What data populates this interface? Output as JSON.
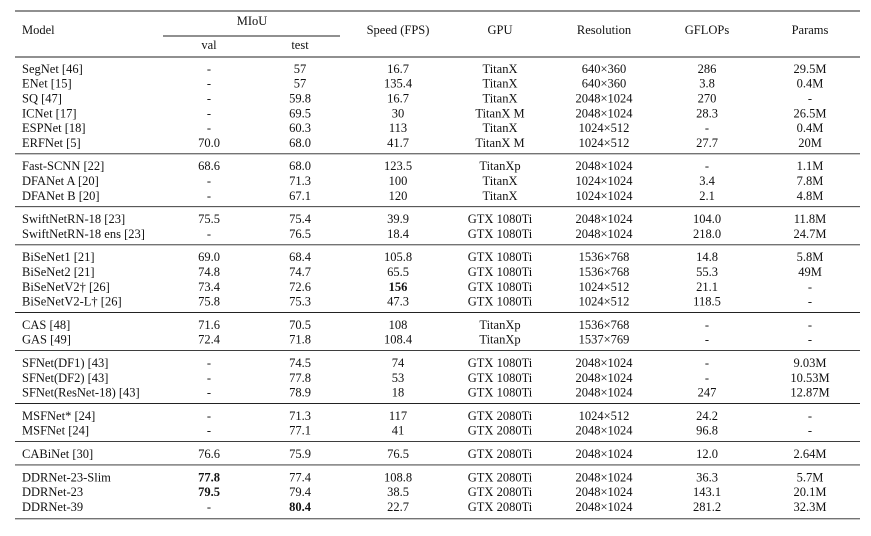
{
  "header": {
    "model": "Model",
    "miou": "MIoU",
    "val": "val",
    "test": "test",
    "speed": "Speed (FPS)",
    "gpu": "GPU",
    "resolution": "Resolution",
    "gflops": "GFLOPs",
    "params": "Params"
  },
  "groups": [
    [
      [
        "SegNet [46]",
        "-",
        "57",
        "16.7",
        "TitanX",
        "640×360",
        "286",
        "29.5M"
      ],
      [
        "ENet [15]",
        "-",
        "57",
        "135.4",
        "TitanX",
        "640×360",
        "3.8",
        "0.4M"
      ],
      [
        "SQ [47]",
        "-",
        "59.8",
        "16.7",
        "TitanX",
        "2048×1024",
        "270",
        "-"
      ],
      [
        "ICNet [17]",
        "-",
        "69.5",
        "30",
        "TitanX M",
        "2048×1024",
        "28.3",
        "26.5M"
      ],
      [
        "ESPNet [18]",
        "-",
        "60.3",
        "113",
        "TitanX",
        "1024×512",
        "-",
        "0.4M"
      ],
      [
        "ERFNet [5]",
        "70.0",
        "68.0",
        "41.7",
        "TitanX M",
        "1024×512",
        "27.7",
        "20M"
      ]
    ],
    [
      [
        "Fast-SCNN [22]",
        "68.6",
        "68.0",
        "123.5",
        "TitanXp",
        "2048×1024",
        "-",
        "1.1M"
      ],
      [
        "DFANet A [20]",
        "-",
        "71.3",
        "100",
        "TitanX",
        "1024×1024",
        "3.4",
        "7.8M"
      ],
      [
        "DFANet B [20]",
        "-",
        "67.1",
        "120",
        "TitanX",
        "1024×1024",
        "2.1",
        "4.8M"
      ]
    ],
    [
      [
        "SwiftNetRN-18 [23]",
        "75.5",
        "75.4",
        "39.9",
        "GTX 1080Ti",
        "2048×1024",
        "104.0",
        "11.8M"
      ],
      [
        "SwiftNetRN-18 ens [23]",
        "-",
        "76.5",
        "18.4",
        "GTX 1080Ti",
        "2048×1024",
        "218.0",
        "24.7M"
      ]
    ],
    [
      [
        "BiSeNet1 [21]",
        "69.0",
        "68.4",
        "105.8",
        "GTX 1080Ti",
        "1536×768",
        "14.8",
        "5.8M"
      ],
      [
        "BiSeNet2 [21]",
        "74.8",
        "74.7",
        "65.5",
        "GTX 1080Ti",
        "1536×768",
        "55.3",
        "49M"
      ],
      [
        "BiSeNetV2† [26]",
        "73.4",
        "72.6",
        "156",
        "GTX 1080Ti",
        "1024×512",
        "21.1",
        "-"
      ],
      [
        "BiSeNetV2-L† [26]",
        "75.8",
        "75.3",
        "47.3",
        "GTX 1080Ti",
        "1024×512",
        "118.5",
        "-"
      ]
    ],
    [
      [
        "CAS [48]",
        "71.6",
        "70.5",
        "108",
        "TitanXp",
        "1536×768",
        "-",
        "-"
      ],
      [
        "GAS [49]",
        "72.4",
        "71.8",
        "108.4",
        "TitanXp",
        "1537×769",
        "-",
        "-"
      ]
    ],
    [
      [
        "SFNet(DF1) [43]",
        "-",
        "74.5",
        "74",
        "GTX 1080Ti",
        "2048×1024",
        "-",
        "9.03M"
      ],
      [
        "SFNet(DF2) [43]",
        "-",
        "77.8",
        "53",
        "GTX 1080Ti",
        "2048×1024",
        "-",
        "10.53M"
      ],
      [
        "SFNet(ResNet-18) [43]",
        "-",
        "78.9",
        "18",
        "GTX 1080Ti",
        "2048×1024",
        "247",
        "12.87M"
      ]
    ],
    [
      [
        "MSFNet* [24]",
        "-",
        "71.3",
        "117",
        "GTX 2080Ti",
        "1024×512",
        "24.2",
        "-"
      ],
      [
        "MSFNet [24]",
        "-",
        "77.1",
        "41",
        "GTX 2080Ti",
        "2048×1024",
        "96.8",
        "-"
      ]
    ],
    [
      [
        "CABiNet [30]",
        "76.6",
        "75.9",
        "76.5",
        "GTX 2080Ti",
        "2048×1024",
        "12.0",
        "2.64M"
      ]
    ],
    [
      [
        "DDRNet-23-Slim",
        "77.8",
        "77.4",
        "108.8",
        "GTX 2080Ti",
        "2048×1024",
        "36.3",
        "5.7M"
      ],
      [
        "DDRNet-23",
        "79.5",
        "79.4",
        "38.5",
        "GTX 2080Ti",
        "2048×1024",
        "143.1",
        "20.1M"
      ],
      [
        "DDRNet-39",
        "-",
        "80.4",
        "22.7",
        "GTX 2080Ti",
        "2048×1024",
        "281.2",
        "32.3M"
      ]
    ]
  ]
}
